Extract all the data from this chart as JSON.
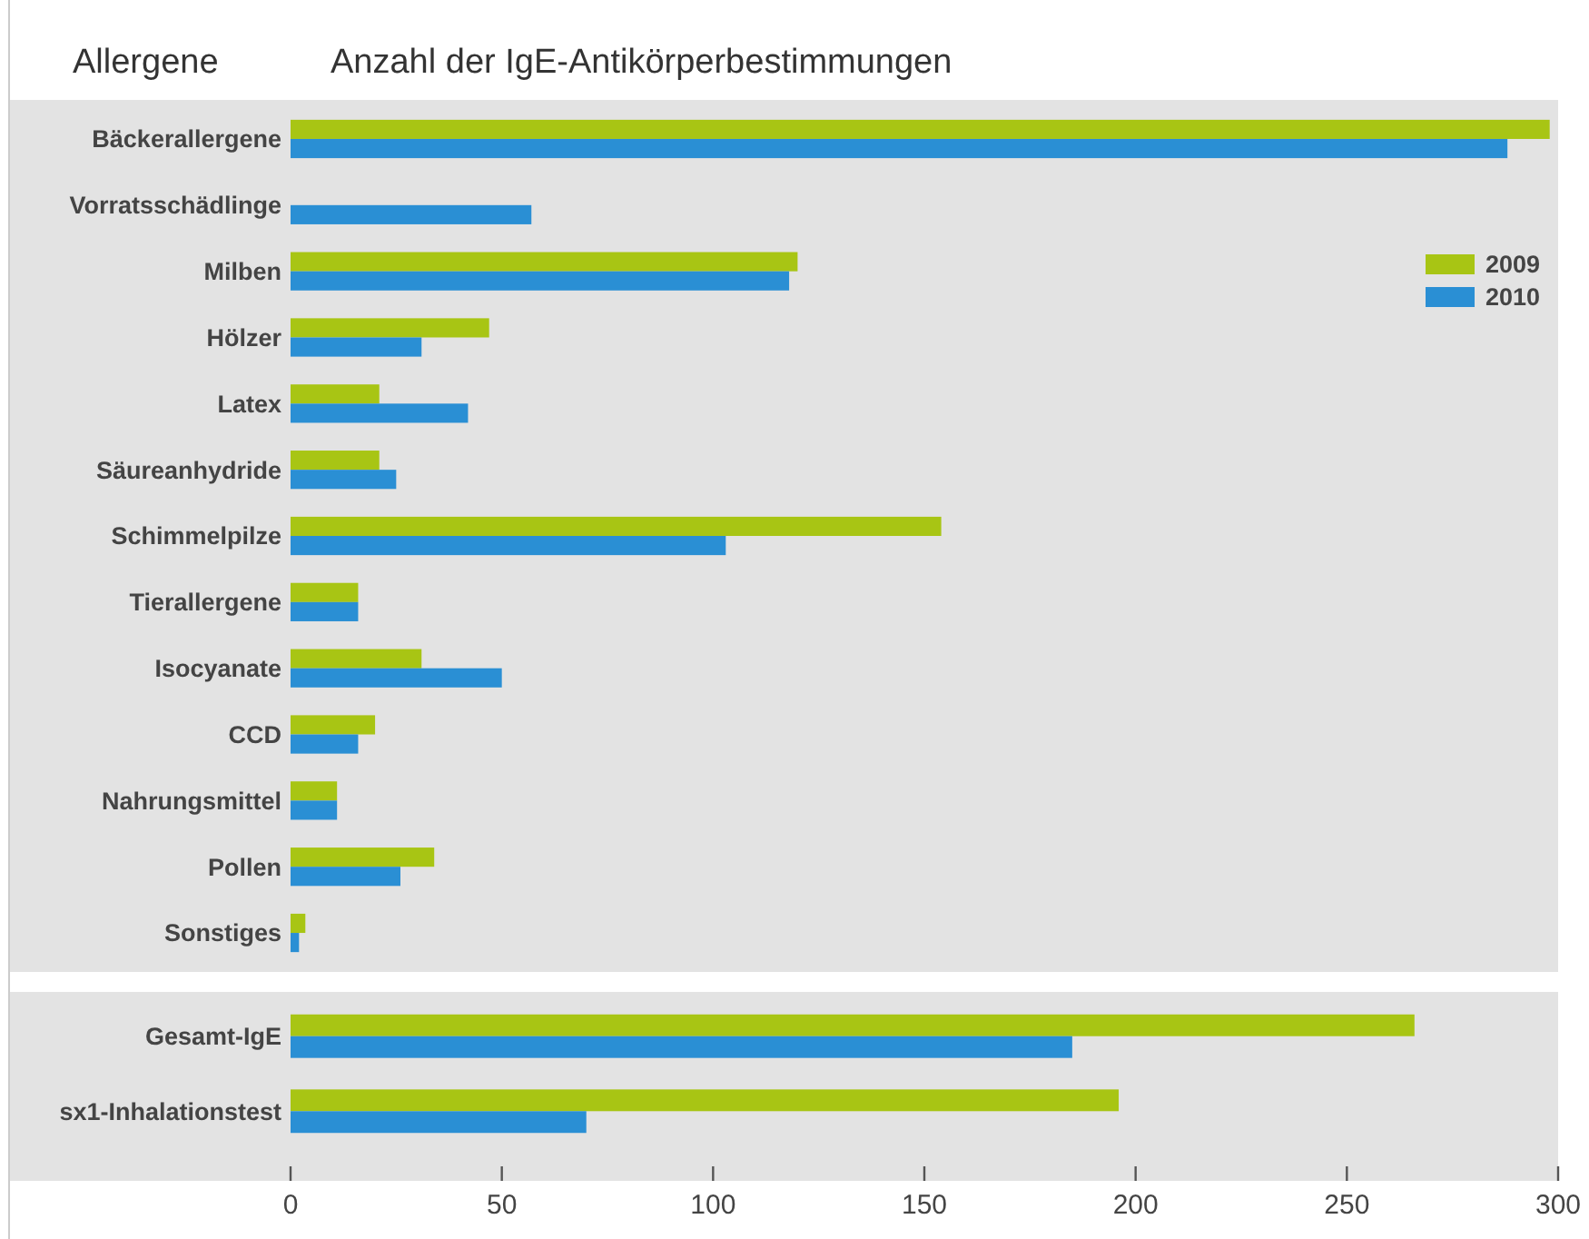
{
  "chart_data": [
    {
      "type": "bar",
      "orientation": "horizontal",
      "title": "Anzahl der IgE-Antikörperbestimmungen",
      "ylabel": "Allergene",
      "categories": [
        "Bäckerallergene",
        "Vorratsschädlinge",
        "Milben",
        "Hölzer",
        "Latex",
        "Säureanhydride",
        "Schimmelpilze",
        "Tierallergene",
        "Isocyanate",
        "CCD",
        "Nahrungsmittel",
        "Pollen",
        "Sonstiges"
      ],
      "series": [
        {
          "name": "2009",
          "color": "#a8c514",
          "values": [
            298,
            null,
            120,
            47,
            21,
            21,
            154,
            16,
            31,
            20,
            11,
            34,
            3.5
          ]
        },
        {
          "name": "2010",
          "color": "#2a8fd4",
          "values": [
            288,
            57,
            118,
            31,
            42,
            25,
            103,
            16,
            50,
            16,
            11,
            26,
            2
          ]
        }
      ],
      "xlim": [
        0,
        300
      ],
      "tick_labels": "y",
      "legend": "right"
    },
    {
      "type": "bar",
      "orientation": "horizontal",
      "categories": [
        "Gesamt-IgE",
        "sx1-Inhalationstest"
      ],
      "series": [
        {
          "color": "#a8c514",
          "values": [
            266,
            196
          ]
        },
        {
          "color": "#2a8fd4",
          "values": [
            185,
            70
          ]
        }
      ],
      "xlim": [
        0,
        300
      ],
      "xticks": [
        0,
        50,
        100,
        150,
        200,
        250,
        300
      ],
      "legend": false
    }
  ]
}
